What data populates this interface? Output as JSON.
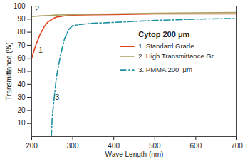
{
  "chart_data": {
    "type": "line",
    "title": "Cytop 200 μm",
    "x_label": "Wave Length (nm)",
    "y_label": "Transmittance (%)",
    "x": [
      200,
      210,
      220,
      230,
      240,
      248,
      250,
      255,
      260,
      270,
      280,
      290,
      300,
      320,
      350,
      400,
      500,
      600,
      700
    ],
    "series": [
      {
        "name": "1. Standard Grade",
        "color": "#e0401c",
        "line_style": "solid",
        "values": [
          60,
          70,
          78,
          84,
          88,
          89.5,
          90,
          90.8,
          91.5,
          92,
          92.5,
          92.8,
          93,
          93.2,
          93.4,
          93.5,
          94,
          94,
          94
        ]
      },
      {
        "name": "2. High Transmittance Gr.",
        "color": "#a8a060",
        "line_style": "solid",
        "values": [
          92,
          92.2,
          92.4,
          92.6,
          92.8,
          92.9,
          93,
          93,
          93.1,
          93.2,
          93.3,
          93.4,
          93.5,
          93.6,
          93.8,
          94,
          94.5,
          94.8,
          95
        ]
      },
      {
        "name": "3. PMMA 200  μm",
        "color": "#1a8fa0",
        "line_style": "dashdot",
        "values": [
          null,
          null,
          null,
          null,
          null,
          0,
          15,
          30,
          45,
          62,
          75,
          82,
          85,
          86,
          86.8,
          87.5,
          89,
          90,
          90.5
        ]
      }
    ],
    "annotations": [
      {
        "text": "1",
        "x": 222,
        "y": 66
      },
      {
        "text": "2",
        "x": 213,
        "y": 98
      },
      {
        "text": "3",
        "x": 262,
        "y": 30
      }
    ],
    "xlim": [
      200,
      700
    ],
    "xticks": [
      200,
      300,
      400,
      500,
      600,
      700
    ],
    "ylim": [
      0,
      100
    ],
    "yticks": [
      10,
      20,
      30,
      40,
      50,
      60,
      70,
      80,
      90,
      100
    ],
    "grid": false,
    "legend": "right"
  }
}
